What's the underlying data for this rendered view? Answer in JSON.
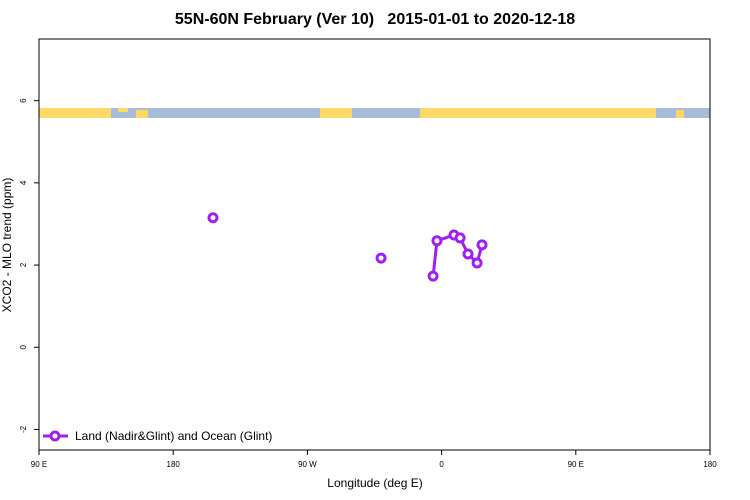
{
  "chart_data": {
    "type": "line",
    "title": "55N-60N February (Ver 10)   2015-01-01 to 2020-12-18",
    "x_label": "Longitude (deg E)",
    "y_label": "XCO2 - MLO trend (ppm)",
    "x": [
      206.7,
      null,
      319.4,
      null,
      354.3,
      356.9,
      368.3,
      372.4,
      377.7,
      383.8,
      387.1
    ],
    "series": [
      {
        "name": "Land (Nadir&Glint) and Ocean (Glint)",
        "color": "#a020f0",
        "values": [
          3.15,
          null,
          2.17,
          null,
          1.73,
          2.59,
          2.73,
          2.66,
          2.27,
          2.05,
          2.49
        ]
      }
    ],
    "xlim": [
      90,
      540
    ],
    "xticks": [
      {
        "value": 90,
        "label": "90 E"
      },
      180,
      {
        "value": 270,
        "label": "90 W"
      },
      {
        "value": 360,
        "label": "0"
      },
      {
        "value": 450,
        "label": "90 E"
      },
      {
        "value": 540,
        "label": "180"
      }
    ],
    "ylim": [
      -2.5,
      7.5
    ],
    "yticks": [
      -2,
      0,
      2,
      4,
      6
    ],
    "legend": "bottom-left"
  }
}
